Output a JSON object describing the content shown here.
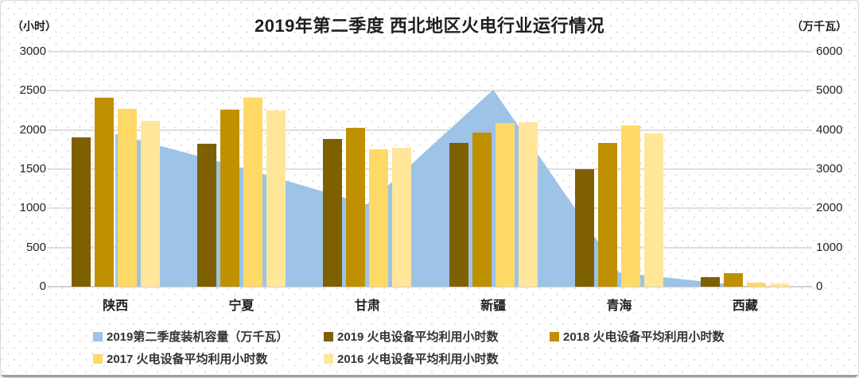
{
  "title": "2019年第二季度 西北地区火电行业运行情况",
  "left_axis": {
    "unit": "（小时）",
    "max": 3000,
    "ticks": [
      "3000",
      "2500",
      "2000",
      "1500",
      "1000",
      "500",
      "0"
    ]
  },
  "right_axis": {
    "unit": "（万千瓦）",
    "max": 6000,
    "ticks": [
      "6000",
      "5000",
      "4000",
      "3000",
      "2000",
      "1000",
      "0"
    ]
  },
  "chart_data": {
    "type": "combo: area (right axis) + grouped bars (left axis)",
    "categories": [
      "陕西",
      "宁夏",
      "甘肃",
      "新疆",
      "青海",
      "西藏"
    ],
    "area_series": {
      "name": "2019第二季度装机容量（万千瓦）",
      "axis": "right",
      "color": "#9DC3E6",
      "values": [
        3900,
        3040,
        2100,
        5030,
        360,
        20
      ]
    },
    "series": [
      {
        "name": "2019 火电设备平均利用小时数",
        "axis": "left",
        "color": "#7F6000",
        "values": [
          1905,
          1825,
          1885,
          1835,
          1500,
          120
        ]
      },
      {
        "name": "2018 火电设备平均利用小时数",
        "axis": "left",
        "color": "#BF9000",
        "values": [
          2410,
          2265,
          2030,
          1965,
          1835,
          170
        ]
      },
      {
        "name": "2017 火电设备平均利用小时数",
        "axis": "left",
        "color": "#FFD966",
        "values": [
          2270,
          2410,
          1755,
          2090,
          2060,
          55
        ]
      },
      {
        "name": "2016 火电设备平均利用小时数",
        "axis": "left",
        "color": "#FFE699",
        "values": [
          2120,
          2255,
          1775,
          2100,
          1955,
          40
        ]
      }
    ],
    "ylim_left": [
      0,
      3000
    ],
    "ylim_right": [
      0,
      6000
    ],
    "grid": "horizontal, every 500 hours",
    "legend_position": "bottom, two rows"
  },
  "legend": {
    "rows": [
      [
        {
          "color": "#9DC3E6",
          "label": "2019第二季度装机容量（万千瓦）"
        },
        {
          "color": "#7F6000",
          "label": "2019 火电设备平均利用小时数"
        },
        {
          "color": "#BF9000",
          "label": "2018 火电设备平均利用小时数"
        }
      ],
      [
        {
          "color": "#FFD966",
          "label": "2017 火电设备平均利用小时数"
        },
        {
          "color": "#FFE699",
          "label": "2016 火电设备平均利用小时数"
        }
      ]
    ]
  }
}
